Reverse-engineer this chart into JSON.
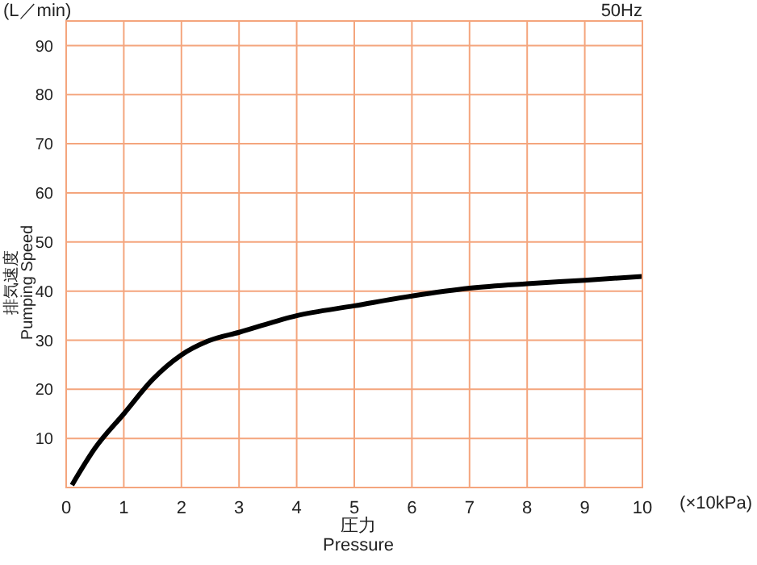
{
  "chart_data": {
    "type": "line",
    "xlabel": "圧力\nPressure",
    "ylabel": "排気速度\nPumping Speed",
    "annotations": [
      "(L／min)",
      "50Hz",
      "(×10kPa)"
    ],
    "x": [
      0.1,
      0.5,
      1,
      1.5,
      2,
      2.5,
      3,
      4,
      5,
      6,
      7,
      8,
      9,
      10
    ],
    "series": [
      {
        "color": "#000000",
        "values": [
          0.5,
          8,
          15,
          22,
          27,
          30,
          31.6,
          35,
          37,
          39,
          40.6,
          41.5,
          42.2,
          43
        ]
      }
    ],
    "xlim": [
      0,
      10
    ],
    "xticks": [
      0,
      1,
      2,
      3,
      4,
      5,
      6,
      7,
      8,
      9,
      10
    ],
    "ylim": [
      0,
      95
    ],
    "yticks": [
      10,
      20,
      30,
      40,
      50,
      60,
      70,
      80,
      90
    ],
    "grid": true,
    "legend": false,
    "marker": "none",
    "line_style": "solid"
  }
}
